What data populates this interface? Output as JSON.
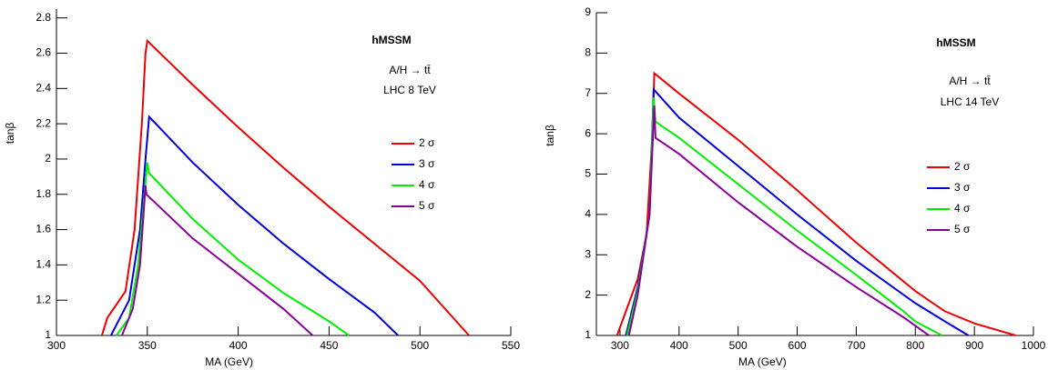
{
  "chart_data": [
    {
      "type": "line",
      "title": "hMSSM",
      "annotations": [
        "A/H → tt̄",
        "LHC 8 TeV"
      ],
      "x_label": "MA (GeV)",
      "y_label": "tanβ",
      "xlim": [
        300,
        550
      ],
      "ylim": [
        1,
        2.85
      ],
      "xticks": [
        300,
        350,
        400,
        450,
        500,
        550
      ],
      "yticks": [
        1,
        1.2,
        1.4,
        1.6,
        1.8,
        2,
        2.2,
        2.4,
        2.6,
        2.8
      ],
      "series": [
        {
          "name": "2 σ",
          "color": "#ee0000",
          "x": [
            325,
            328,
            338,
            343,
            347,
            349,
            350,
            375,
            400,
            425,
            450,
            475,
            500,
            527
          ],
          "values": [
            1,
            1.1,
            1.25,
            1.6,
            2.2,
            2.6,
            2.67,
            2.42,
            2.18,
            1.95,
            1.73,
            1.52,
            1.31,
            1
          ]
        },
        {
          "name": "3 σ",
          "color": "#0000dd",
          "x": [
            330,
            340,
            346,
            349,
            351,
            375,
            400,
            425,
            450,
            475,
            488
          ],
          "values": [
            1,
            1.2,
            1.6,
            2,
            2.24,
            1.98,
            1.74,
            1.52,
            1.32,
            1.13,
            1
          ]
        },
        {
          "name": "4 σ",
          "color": "#00ee00",
          "x": [
            333,
            340,
            345,
            348,
            350,
            351,
            375,
            400,
            425,
            450,
            461
          ],
          "values": [
            1,
            1.1,
            1.4,
            1.75,
            1.98,
            1.92,
            1.66,
            1.43,
            1.24,
            1.08,
            1
          ]
        },
        {
          "name": "5 σ",
          "color": "#880099",
          "x": [
            336,
            342,
            346,
            348,
            349,
            349.5,
            375,
            400,
            425,
            441
          ],
          "values": [
            1,
            1.15,
            1.4,
            1.7,
            1.85,
            1.8,
            1.55,
            1.35,
            1.15,
            1
          ]
        }
      ]
    },
    {
      "type": "line",
      "title": "hMSSM",
      "annotations": [
        "A/H → tt̄",
        "LHC 14 TeV"
      ],
      "x_label": "MA (GeV)",
      "y_label": "tanβ",
      "xlim": [
        260,
        1000
      ],
      "ylim": [
        1,
        9
      ],
      "xticks": [
        300,
        400,
        500,
        600,
        700,
        800,
        900,
        1000
      ],
      "yticks": [
        1,
        2,
        3,
        4,
        5,
        6,
        7,
        8,
        9
      ],
      "series": [
        {
          "name": "2 σ",
          "color": "#ee0000",
          "x": [
            295,
            310,
            330,
            345,
            355,
            358,
            400,
            500,
            600,
            700,
            800,
            850,
            900,
            970
          ],
          "values": [
            1,
            1.6,
            2.4,
            3.5,
            6,
            7.5,
            7,
            5.85,
            4.6,
            3.3,
            2.1,
            1.6,
            1.3,
            1
          ]
        },
        {
          "name": "3 σ",
          "color": "#0000dd",
          "x": [
            310,
            330,
            350,
            357,
            400,
            500,
            600,
            700,
            800,
            850,
            890
          ],
          "values": [
            1,
            2.2,
            4,
            7.1,
            6.4,
            5.2,
            4,
            2.85,
            1.8,
            1.35,
            1
          ]
        },
        {
          "name": "4 σ",
          "color": "#00ee00",
          "x": [
            312,
            330,
            350,
            357,
            360,
            400,
            500,
            600,
            700,
            780,
            800,
            845
          ],
          "values": [
            1,
            2.1,
            4,
            6.9,
            6.3,
            5.9,
            4.75,
            3.6,
            2.5,
            1.6,
            1.35,
            1
          ]
        },
        {
          "name": "5 σ",
          "color": "#880099",
          "x": [
            315,
            330,
            350,
            358,
            360,
            400,
            500,
            600,
            700,
            780,
            823
          ],
          "values": [
            1,
            2,
            4,
            6.7,
            5.9,
            5.5,
            4.3,
            3.2,
            2.2,
            1.45,
            1
          ]
        }
      ]
    }
  ]
}
